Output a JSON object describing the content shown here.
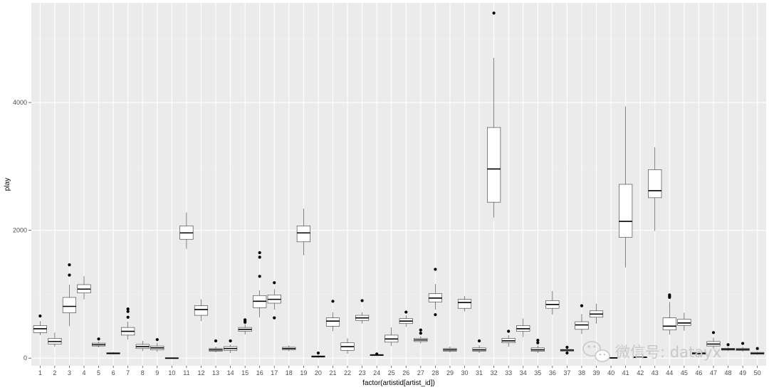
{
  "chart_data": {
    "type": "boxplot",
    "xlabel": "factor(artistid[artist_id])",
    "ylabel": "play",
    "ylim": [
      -120,
      5560
    ],
    "yticks": [
      0,
      2000,
      4000
    ],
    "grid": true,
    "categories": [
      "1",
      "2",
      "3",
      "4",
      "5",
      "6",
      "7",
      "8",
      "9",
      "10",
      "11",
      "12",
      "13",
      "14",
      "15",
      "16",
      "17",
      "18",
      "19",
      "20",
      "21",
      "22",
      "23",
      "24",
      "25",
      "26",
      "27",
      "28",
      "29",
      "30",
      "31",
      "32",
      "33",
      "34",
      "35",
      "36",
      "37",
      "38",
      "39",
      "40",
      "41",
      "42",
      "43",
      "44",
      "45",
      "46",
      "47",
      "48",
      "49",
      "50"
    ],
    "boxes": [
      {
        "q1": 400,
        "median": 460,
        "q3": 510,
        "wlo": 360,
        "whi": 580,
        "outliers": [
          660
        ]
      },
      {
        "q1": 220,
        "median": 260,
        "q3": 310,
        "wlo": 180,
        "whi": 400,
        "outliers": []
      },
      {
        "q1": 710,
        "median": 810,
        "q3": 950,
        "wlo": 500,
        "whi": 1150,
        "outliers": [
          1300,
          1460
        ]
      },
      {
        "q1": 1020,
        "median": 1080,
        "q3": 1150,
        "wlo": 920,
        "whi": 1280,
        "outliers": []
      },
      {
        "q1": 190,
        "median": 210,
        "q3": 235,
        "wlo": 170,
        "whi": 260,
        "outliers": [
          300
        ]
      },
      {
        "q1": 65,
        "median": 75,
        "q3": 85,
        "wlo": 55,
        "whi": 95,
        "outliers": []
      },
      {
        "q1": 360,
        "median": 420,
        "q3": 480,
        "wlo": 290,
        "whi": 570,
        "outliers": [
          640,
          730,
          770
        ]
      },
      {
        "q1": 150,
        "median": 180,
        "q3": 215,
        "wlo": 110,
        "whi": 270,
        "outliers": []
      },
      {
        "q1": 130,
        "median": 160,
        "q3": 190,
        "wlo": 100,
        "whi": 240,
        "outliers": [
          290
        ]
      },
      {
        "q1": -5,
        "median": 0,
        "q3": 5,
        "wlo": -10,
        "whi": 10,
        "outliers": []
      },
      {
        "q1": 1860,
        "median": 1960,
        "q3": 2070,
        "wlo": 1710,
        "whi": 2280,
        "outliers": []
      },
      {
        "q1": 670,
        "median": 760,
        "q3": 820,
        "wlo": 580,
        "whi": 920,
        "outliers": []
      },
      {
        "q1": 110,
        "median": 130,
        "q3": 150,
        "wlo": 90,
        "whi": 180,
        "outliers": [
          270
        ]
      },
      {
        "q1": 120,
        "median": 150,
        "q3": 180,
        "wlo": 80,
        "whi": 210,
        "outliers": [
          270
        ]
      },
      {
        "q1": 420,
        "median": 450,
        "q3": 480,
        "wlo": 370,
        "whi": 530,
        "outliers": [
          560,
          580,
          600
        ]
      },
      {
        "q1": 790,
        "median": 890,
        "q3": 980,
        "wlo": 640,
        "whi": 1060,
        "outliers": [
          1280,
          1580,
          1650
        ]
      },
      {
        "q1": 860,
        "median": 920,
        "q3": 990,
        "wlo": 760,
        "whi": 1080,
        "outliers": [
          630,
          1180
        ]
      },
      {
        "q1": 130,
        "median": 150,
        "q3": 170,
        "wlo": 110,
        "whi": 200,
        "outliers": []
      },
      {
        "q1": 1820,
        "median": 1960,
        "q3": 2070,
        "wlo": 1610,
        "whi": 2340,
        "outliers": []
      },
      {
        "q1": 15,
        "median": 25,
        "q3": 35,
        "wlo": 5,
        "whi": 45,
        "outliers": [
          80
        ]
      },
      {
        "q1": 500,
        "median": 580,
        "q3": 630,
        "wlo": 420,
        "whi": 720,
        "outliers": [
          890
        ]
      },
      {
        "q1": 120,
        "median": 180,
        "q3": 240,
        "wlo": 70,
        "whi": 310,
        "outliers": []
      },
      {
        "q1": 590,
        "median": 630,
        "q3": 670,
        "wlo": 540,
        "whi": 720,
        "outliers": [
          900
        ]
      },
      {
        "q1": 40,
        "median": 50,
        "q3": 55,
        "wlo": 30,
        "whi": 60,
        "outliers": [
          65
        ]
      },
      {
        "q1": 250,
        "median": 300,
        "q3": 360,
        "wlo": 190,
        "whi": 480,
        "outliers": []
      },
      {
        "q1": 540,
        "median": 580,
        "q3": 620,
        "wlo": 490,
        "whi": 670,
        "outliers": [
          720
        ]
      },
      {
        "q1": 260,
        "median": 285,
        "q3": 310,
        "wlo": 230,
        "whi": 340,
        "outliers": [
          390,
          440
        ]
      },
      {
        "q1": 880,
        "median": 940,
        "q3": 1010,
        "wlo": 760,
        "whi": 1160,
        "outliers": [
          680,
          1390
        ]
      },
      {
        "q1": 110,
        "median": 130,
        "q3": 150,
        "wlo": 90,
        "whi": 180,
        "outliers": []
      },
      {
        "q1": 780,
        "median": 870,
        "q3": 920,
        "wlo": 730,
        "whi": 970,
        "outliers": []
      },
      {
        "q1": 110,
        "median": 130,
        "q3": 160,
        "wlo": 80,
        "whi": 200,
        "outliers": [
          270
        ]
      },
      {
        "q1": 2440,
        "median": 2960,
        "q3": 3610,
        "wlo": 2200,
        "whi": 4700,
        "outliers": [
          5400
        ]
      },
      {
        "q1": 240,
        "median": 270,
        "q3": 310,
        "wlo": 180,
        "whi": 360,
        "outliers": [
          420
        ]
      },
      {
        "q1": 420,
        "median": 460,
        "q3": 510,
        "wlo": 330,
        "whi": 620,
        "outliers": []
      },
      {
        "q1": 110,
        "median": 130,
        "q3": 160,
        "wlo": 80,
        "whi": 200,
        "outliers": [
          240,
          280
        ]
      },
      {
        "q1": 780,
        "median": 840,
        "q3": 900,
        "wlo": 680,
        "whi": 1050,
        "outliers": []
      },
      {
        "q1": 110,
        "median": 125,
        "q3": 135,
        "wlo": 90,
        "whi": 150,
        "outliers": [
          80,
          170
        ]
      },
      {
        "q1": 450,
        "median": 520,
        "q3": 570,
        "wlo": 380,
        "whi": 690,
        "outliers": [
          820
        ]
      },
      {
        "q1": 640,
        "median": 690,
        "q3": 740,
        "wlo": 540,
        "whi": 850,
        "outliers": []
      },
      {
        "q1": 0,
        "median": 5,
        "q3": 10,
        "wlo": -5,
        "whi": 15,
        "outliers": []
      },
      {
        "q1": 1890,
        "median": 2140,
        "q3": 2720,
        "wlo": 1420,
        "whi": 3940,
        "outliers": []
      },
      {
        "q1": 10,
        "median": 15,
        "q3": 20,
        "wlo": 5,
        "whi": 25,
        "outliers": []
      },
      {
        "q1": 2510,
        "median": 2620,
        "q3": 2950,
        "wlo": 1990,
        "whi": 3300,
        "outliers": []
      },
      {
        "q1": 440,
        "median": 500,
        "q3": 630,
        "wlo": 370,
        "whi": 880,
        "outliers": [
          950,
          970,
          990
        ]
      },
      {
        "q1": 510,
        "median": 550,
        "q3": 610,
        "wlo": 430,
        "whi": 710,
        "outliers": []
      },
      {
        "q1": 60,
        "median": 75,
        "q3": 90,
        "wlo": 40,
        "whi": 110,
        "outliers": []
      },
      {
        "q1": 190,
        "median": 220,
        "q3": 260,
        "wlo": 150,
        "whi": 320,
        "outliers": [
          400
        ]
      },
      {
        "q1": 125,
        "median": 140,
        "q3": 155,
        "wlo": 110,
        "whi": 170,
        "outliers": [
          210
        ]
      },
      {
        "q1": 120,
        "median": 135,
        "q3": 150,
        "wlo": 100,
        "whi": 175,
        "outliers": [
          230
        ]
      },
      {
        "q1": 60,
        "median": 75,
        "q3": 90,
        "wlo": 50,
        "whi": 100,
        "outliers": [
          150
        ]
      }
    ]
  },
  "watermark": {
    "text": "微信号: datayx",
    "icon": "wechat-icon"
  },
  "colors": {
    "panel": "#ebebeb",
    "grid_major": "#ffffff",
    "grid_minor": "#f2f2f2",
    "box_fill": "#ffffff",
    "box_line": "#333333",
    "outlier": "#000000"
  }
}
